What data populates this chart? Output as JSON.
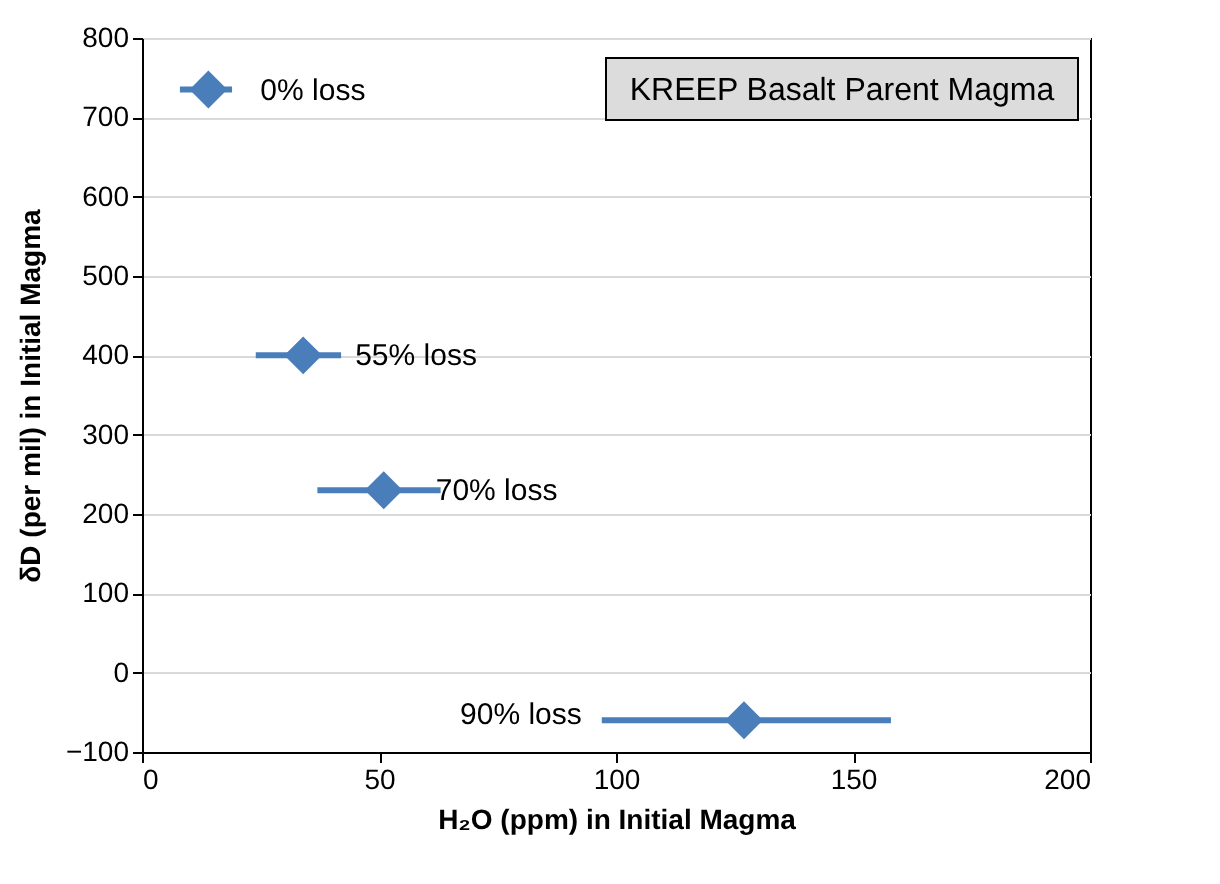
{
  "chart_data": {
    "type": "scatter",
    "xlabel": "H₂O (ppm) in Initial Magma",
    "ylabel": "δD (per mil) in Initial Magma",
    "x": [
      14,
      34,
      51,
      127
    ],
    "series": [
      {
        "color": "#4a7ebb",
        "values": [
          735,
          400,
          230,
          -60
        ],
        "xerrors": [
          [
            8,
            19
          ],
          [
            24,
            42
          ],
          [
            37,
            63
          ],
          [
            97,
            158
          ]
        ]
      }
    ],
    "xlim": [
      0,
      200
    ],
    "xticks": [
      0,
      50,
      100,
      150,
      200
    ],
    "ylim": [
      -100,
      800
    ],
    "yticks": [
      -100,
      0,
      100,
      200,
      300,
      400,
      500,
      600,
      700,
      800
    ],
    "grid": "y",
    "marker": "diamond",
    "annotations": [
      "KREEP Basalt Parent Magma",
      {
        "text": "0% loss",
        "x": 14,
        "y": 735
      },
      {
        "text": "55% loss",
        "x": 34,
        "y": 400
      },
      {
        "text": "70% loss",
        "x": 51,
        "y": 230
      },
      {
        "text": "90% loss",
        "x": 97,
        "y": -60
      }
    ]
  }
}
